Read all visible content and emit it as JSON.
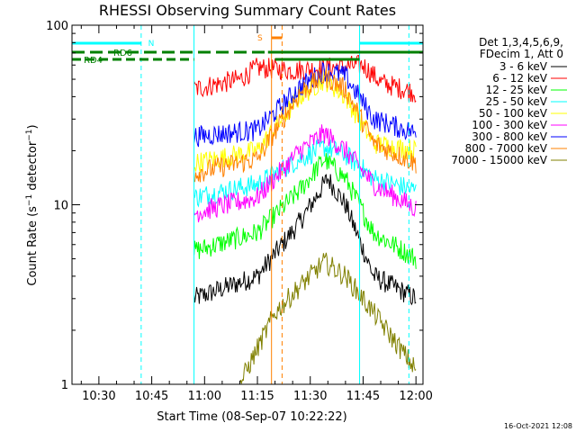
{
  "chart_data": {
    "type": "line",
    "title": "RHESSI Observing Summary Count Rates",
    "xlabel": "Start Time (08-Sep-07 10:22:22)",
    "ylabel": "Count Rate (s⁻¹ detector⁻¹)",
    "ylabel_parts": {
      "main": "Count Rate (s",
      "sup1": "−1",
      "mid": " detector",
      "sup2": "−1",
      "end": ")"
    },
    "xlim": [
      "10:22:22",
      "12:02:00"
    ],
    "ylim": [
      1,
      100
    ],
    "y_scale": "log",
    "x_ticks": [
      "10:30",
      "10:45",
      "11:00",
      "11:15",
      "11:30",
      "11:45",
      "12:00"
    ],
    "y_ticks": [
      "1",
      "10",
      "100"
    ],
    "legend_header": [
      "Det 1,3,4,5,6,9,",
      "FDecim 1, Att 0"
    ],
    "legend_position": "right",
    "series": [
      {
        "name": "3 - 6 keV",
        "color": "#000000",
        "keypoints": [
          [
            "10:57",
            3.0
          ],
          [
            "11:15",
            4.0
          ],
          [
            "11:27",
            8.0
          ],
          [
            "11:35",
            14
          ],
          [
            "11:40",
            10
          ],
          [
            "11:48",
            4.0
          ],
          [
            "12:00",
            3.0
          ]
        ]
      },
      {
        "name": "6 - 12 keV",
        "color": "#ff0000",
        "keypoints": [
          [
            "10:57",
            44
          ],
          [
            "11:10",
            50
          ],
          [
            "11:15",
            58
          ],
          [
            "11:25",
            56
          ],
          [
            "11:35",
            58
          ],
          [
            "11:45",
            60
          ],
          [
            "11:50",
            48
          ],
          [
            "12:00",
            42
          ]
        ]
      },
      {
        "name": "12 - 25 keV",
        "color": "#00ff00",
        "keypoints": [
          [
            "10:57",
            5.5
          ],
          [
            "11:15",
            7.0
          ],
          [
            "11:27",
            12
          ],
          [
            "11:34",
            18
          ],
          [
            "11:40",
            14
          ],
          [
            "11:48",
            7.0
          ],
          [
            "12:00",
            5.0
          ]
        ]
      },
      {
        "name": "25 - 50 keV",
        "color": "#00ffff",
        "keypoints": [
          [
            "10:57",
            11
          ],
          [
            "11:15",
            13
          ],
          [
            "11:27",
            18
          ],
          [
            "11:34",
            21
          ],
          [
            "11:40",
            19
          ],
          [
            "11:48",
            14
          ],
          [
            "12:00",
            12
          ]
        ]
      },
      {
        "name": "50 - 100 keV",
        "color": "#ffff00",
        "keypoints": [
          [
            "10:57",
            17
          ],
          [
            "11:15",
            20
          ],
          [
            "11:27",
            40
          ],
          [
            "11:34",
            50
          ],
          [
            "11:40",
            40
          ],
          [
            "11:48",
            22
          ],
          [
            "12:00",
            20
          ]
        ]
      },
      {
        "name": "100 - 300 keV",
        "color": "#ff00ff",
        "keypoints": [
          [
            "10:57",
            9
          ],
          [
            "11:15",
            11
          ],
          [
            "11:27",
            20
          ],
          [
            "11:34",
            25
          ],
          [
            "11:40",
            20
          ],
          [
            "11:48",
            13
          ],
          [
            "12:00",
            9.5
          ]
        ]
      },
      {
        "name": "300 - 800 keV",
        "color": "#0000ff",
        "keypoints": [
          [
            "10:57",
            24
          ],
          [
            "11:15",
            26
          ],
          [
            "11:27",
            45
          ],
          [
            "11:34",
            56
          ],
          [
            "11:40",
            52
          ],
          [
            "11:48",
            30
          ],
          [
            "12:00",
            25
          ]
        ]
      },
      {
        "name": "800 - 7000 keV",
        "color": "#ff8000",
        "keypoints": [
          [
            "10:57",
            15
          ],
          [
            "11:15",
            18
          ],
          [
            "11:27",
            42
          ],
          [
            "11:34",
            52
          ],
          [
            "11:40",
            44
          ],
          [
            "11:48",
            22
          ],
          [
            "12:00",
            17
          ]
        ]
      },
      {
        "name": "7000 - 15000 keV",
        "color": "#808000",
        "keypoints": [
          [
            "11:10",
            1.0
          ],
          [
            "11:20",
            2.5
          ],
          [
            "11:27",
            3.5
          ],
          [
            "11:34",
            4.8
          ],
          [
            "11:40",
            4.0
          ],
          [
            "11:48",
            2.5
          ],
          [
            "12:00",
            1.2
          ]
        ]
      }
    ],
    "annotations": {
      "night_label": "N",
      "saa_label": "S",
      "rd_labels": [
        "RD6",
        "RD4"
      ],
      "timestamp": "16-Oct-2021 12:08"
    },
    "colors": {
      "night": "#00ffff",
      "saa": "#ff8000",
      "decim": "#008000",
      "axes": "#000000"
    }
  }
}
